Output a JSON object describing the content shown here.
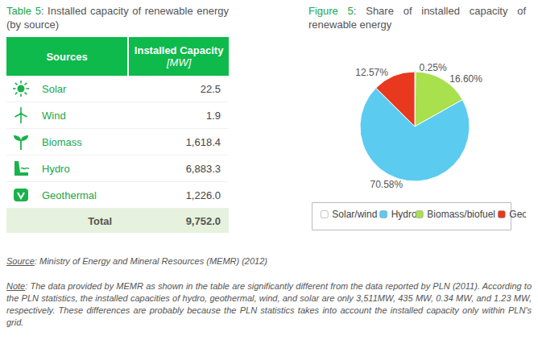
{
  "table": {
    "title": "Table 5: Installed capacity of renewable energy (by source)",
    "header": {
      "sources": "Sources",
      "capacity": "Installed Capacity",
      "unit": "[MW]"
    },
    "rows": [
      [
        "Solar",
        "22.5"
      ],
      [
        "Wind",
        "1.9"
      ],
      [
        "Biomass",
        "1,618.4"
      ],
      [
        "Hydro",
        "6,883.3"
      ],
      [
        "Geothermal",
        "1,226.0"
      ]
    ],
    "total": [
      "Total",
      "9,752.0"
    ]
  },
  "chart_data": {
    "type": "pie",
    "title": "Figure 5: Share of installed capacity of renewable energy",
    "categories": [
      "Solar/wind",
      "Biomass/biofuel",
      "Hydro",
      "Geothermal"
    ],
    "values": [
      0.25,
      16.6,
      70.58,
      12.57
    ],
    "value_labels": [
      "0.25%",
      "16.60%",
      "70.58%",
      "12.57%"
    ],
    "colors": [
      "#ffffff",
      "#a8e04e",
      "#5bcbf0",
      "#e8381e"
    ],
    "data_labels": true,
    "legend": "bottom"
  },
  "source": "Source: Ministry of Energy and Mineral Resources (MEMR) (2012)",
  "note": "Note: The data provided by MEMR as shown in the table are significantly different from the data reported by PLN (2011). According to the PLN statistics, the installed capacities of hydro, geothermal, wind, and solar are only 3,511MW, 435 MW, 0.34 MW, and 1.23 MW, respectively. These differences are probably because the PLN statistics takes into account the installed capacity only within PLN's grid."
}
